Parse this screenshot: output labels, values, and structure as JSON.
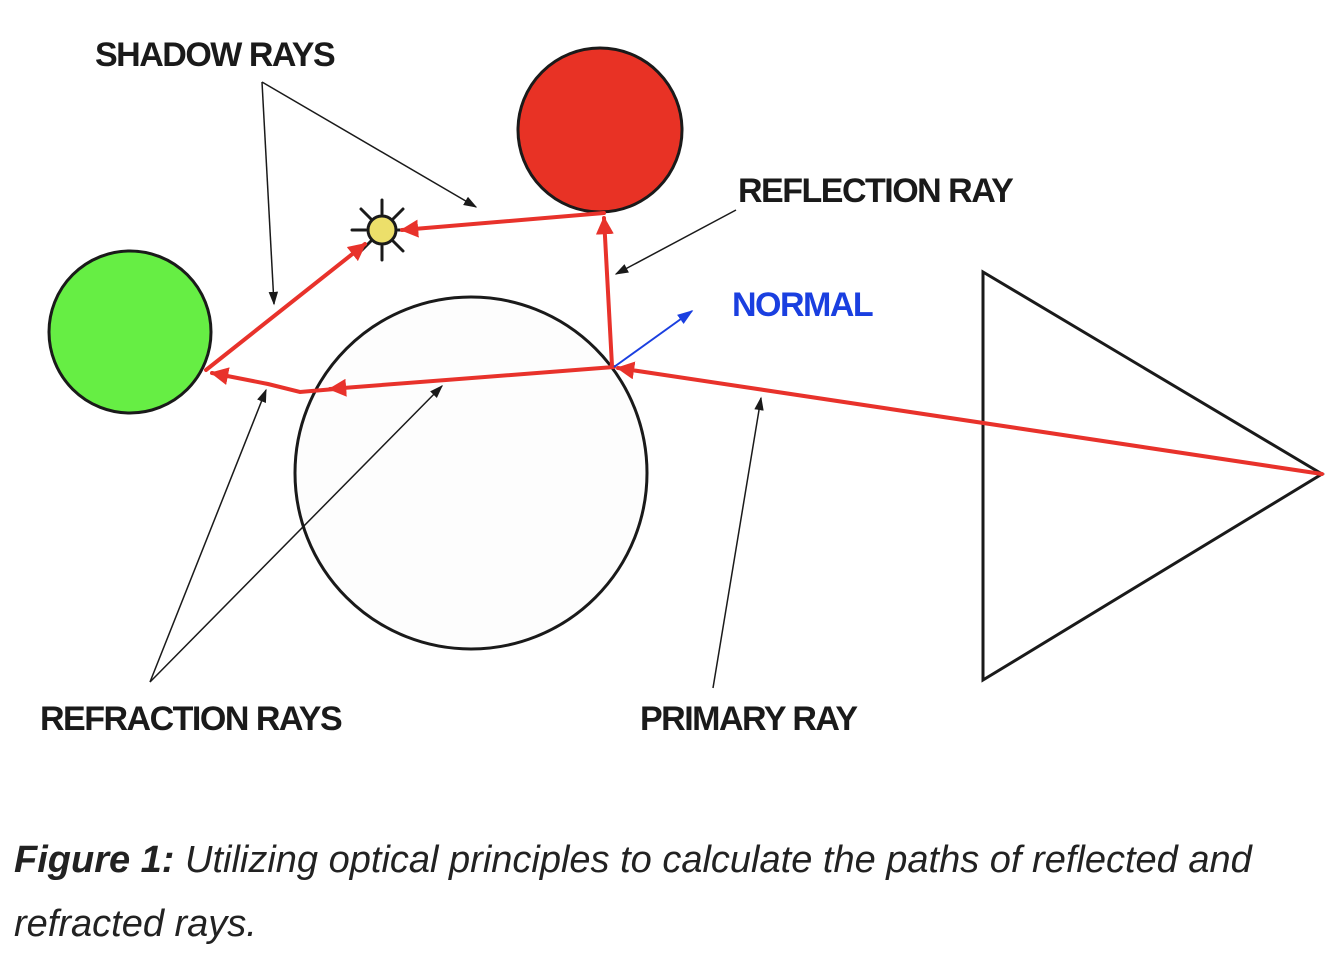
{
  "labels": {
    "shadow_rays": "SHADOW RAYS",
    "reflection_ray": "REFLECTION RAY",
    "normal": "NORMAL",
    "refraction_rays": "REFRACTION RAYS",
    "primary_ray": "PRIMARY RAY"
  },
  "caption": {
    "prefix": "Figure 1:",
    "text": "Utilizing optical principles to calculate the paths of reflected and refracted rays."
  },
  "colors": {
    "ray": "#e8322b",
    "normal": "#1a3fe0",
    "green_sphere": "#66ee44",
    "red_sphere": "#e83225",
    "light": "#ecdf6a",
    "outline": "#1a1a1a"
  },
  "icons": {
    "light_source": "sun-icon"
  }
}
